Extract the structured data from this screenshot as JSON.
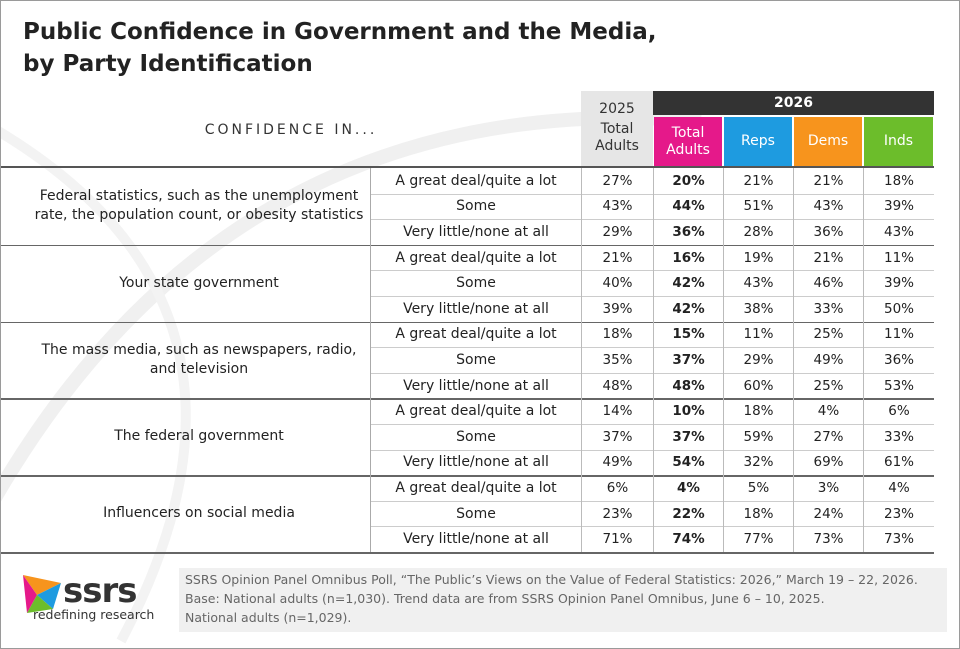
{
  "header": {
    "title": [
      "Public Confidence in Government and the Media,",
      "by Party Identification"
    ]
  },
  "table": {
    "row_header": "CONFIDENCE IN...",
    "year_2025": "2025",
    "column_2025": "Total Adults",
    "year_2026": "2026",
    "columns_2026": [
      "Total Adults",
      "Reps",
      "Dems",
      "Inds"
    ],
    "groups": [
      {
        "label": "Federal statistics, such as the unemployment rate, the population count, or obesity statistics",
        "rows": [
          {
            "response": "A great deal/quite a lot",
            "values": [
              "27%",
              "20%",
              "21%",
              "21%",
              "18%"
            ]
          },
          {
            "response": "Some",
            "values": [
              "43%",
              "44%",
              "51%",
              "43%",
              "39%"
            ]
          },
          {
            "response": "Very little/none at all",
            "values": [
              "29%",
              "36%",
              "28%",
              "36%",
              "43%"
            ]
          }
        ]
      },
      {
        "label": "Your state government",
        "rows": [
          {
            "response": "A great deal/quite a lot",
            "values": [
              "21%",
              "16%",
              "19%",
              "21%",
              "11%"
            ]
          },
          {
            "response": "Some",
            "values": [
              "40%",
              "42%",
              "43%",
              "46%",
              "39%"
            ]
          },
          {
            "response": "Very little/none at all",
            "values": [
              "39%",
              "42%",
              "38%",
              "33%",
              "50%"
            ]
          }
        ]
      },
      {
        "label": "The mass media, such as newspapers, radio, and television",
        "rows": [
          {
            "response": "A great deal/quite a lot",
            "values": [
              "18%",
              "15%",
              "11%",
              "25%",
              "11%"
            ]
          },
          {
            "response": "Some",
            "values": [
              "35%",
              "37%",
              "29%",
              "49%",
              "36%"
            ]
          },
          {
            "response": "Very little/none at all",
            "values": [
              "48%",
              "48%",
              "60%",
              "25%",
              "53%"
            ]
          }
        ]
      },
      {
        "label": "The federal government",
        "rows": [
          {
            "response": "A great deal/quite a lot",
            "values": [
              "14%",
              "10%",
              "18%",
              "4%",
              "6%"
            ]
          },
          {
            "response": "Some",
            "values": [
              "37%",
              "37%",
              "59%",
              "27%",
              "33%"
            ]
          },
          {
            "response": "Very little/none at all",
            "values": [
              "49%",
              "54%",
              "32%",
              "69%",
              "61%"
            ]
          }
        ]
      },
      {
        "label": "Influencers on social media",
        "rows": [
          {
            "response": "A great deal/quite a lot",
            "values": [
              "6%",
              "4%",
              "5%",
              "3%",
              "4%"
            ]
          },
          {
            "response": "Some",
            "values": [
              "23%",
              "22%",
              "18%",
              "24%",
              "23%"
            ]
          },
          {
            "response": "Very little/none at all",
            "values": [
              "71%",
              "74%",
              "77%",
              "73%",
              "73%"
            ]
          }
        ]
      }
    ]
  },
  "footer": {
    "logo": "ssrs",
    "tagline": "redefining research",
    "source": [
      "SSRS Opinion Panel Omnibus Poll, “The Public’s Views on the Value of Federal Statistics: 2026,” March 19 – 22, 2026.",
      "Base: National adults (n=1,030). Trend data are from SSRS Opinion Panel Omnibus, June 6 – 10, 2025.",
      "National adults (n=1,029)."
    ]
  }
}
